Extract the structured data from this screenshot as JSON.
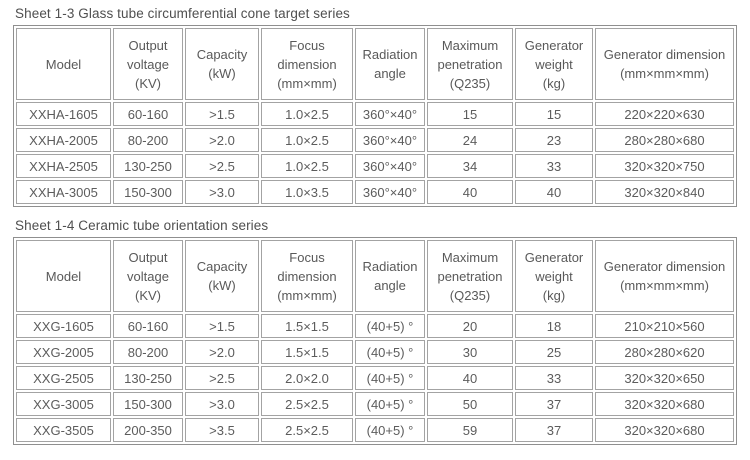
{
  "page": {
    "background": "#ffffff",
    "text_color": "#595959",
    "border_color": "#9a9a9a"
  },
  "tables": [
    {
      "title": "Sheet 1-3 Glass tube circumferential cone target series",
      "header": [
        [
          "Model"
        ],
        [
          "Output",
          "voltage",
          "(KV)"
        ],
        [
          "Capacity",
          "(kW)"
        ],
        [
          "Focus",
          "dimension",
          "(mm×mm)"
        ],
        [
          "Radiation",
          "angle"
        ],
        [
          "Maximum",
          "penetration",
          "(Q235)"
        ],
        [
          "Generator",
          "weight",
          "(kg)"
        ],
        [
          "Generator dimension",
          "(mm×mm×mm)"
        ]
      ],
      "rows": [
        [
          "XXHA-1605",
          "60-160",
          ">1.5",
          "1.0×2.5",
          "360°×40°",
          "15",
          "15",
          "220×220×630"
        ],
        [
          "XXHA-2005",
          "80-200",
          ">2.0",
          "1.0×2.5",
          "360°×40°",
          "24",
          "23",
          "280×280×680"
        ],
        [
          "XXHA-2505",
          "130-250",
          ">2.5",
          "1.0×2.5",
          "360°×40°",
          "34",
          "33",
          "320×320×750"
        ],
        [
          "XXHA-3005",
          "150-300",
          ">3.0",
          "1.0×3.5",
          "360°×40°",
          "40",
          "40",
          "320×320×840"
        ]
      ]
    },
    {
      "title": "Sheet 1-4 Ceramic tube orientation series",
      "header": [
        [
          "Model"
        ],
        [
          "Output",
          "voltage",
          "(KV)"
        ],
        [
          "Capacity",
          "(kW)"
        ],
        [
          "Focus",
          "dimension",
          "(mm×mm)"
        ],
        [
          "Radiation",
          "angle"
        ],
        [
          "Maximum",
          "penetration",
          "(Q235)"
        ],
        [
          "Generator",
          "weight",
          "(kg)"
        ],
        [
          "Generator dimension",
          "(mm×mm×mm)"
        ]
      ],
      "rows": [
        [
          "XXG-1605",
          "60-160",
          ">1.5",
          "1.5×1.5",
          "(40+5) °",
          "20",
          "18",
          "210×210×560"
        ],
        [
          "XXG-2005",
          "80-200",
          ">2.0",
          "1.5×1.5",
          "(40+5) °",
          "30",
          "25",
          "280×280×620"
        ],
        [
          "XXG-2505",
          "130-250",
          ">2.5",
          "2.0×2.0",
          "(40+5) °",
          "40",
          "33",
          "320×320×650"
        ],
        [
          "XXG-3005",
          "150-300",
          ">3.0",
          "2.5×2.5",
          "(40+5) °",
          "50",
          "37",
          "320×320×680"
        ],
        [
          "XXG-3505",
          "200-350",
          ">3.5",
          "2.5×2.5",
          "(40+5) °",
          "59",
          "37",
          "320×320×680"
        ]
      ]
    }
  ]
}
